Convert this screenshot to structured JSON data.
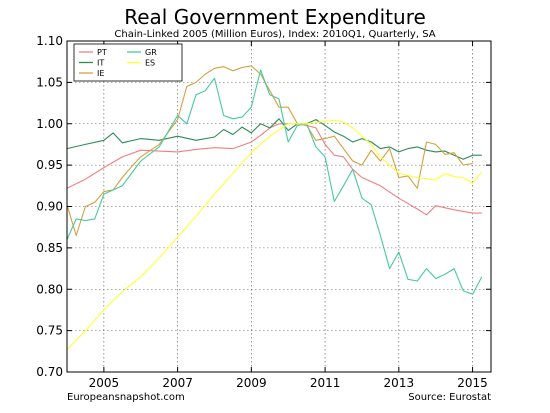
{
  "chart_data": {
    "type": "line",
    "title": "Real Government Expenditure",
    "subtitle": "Chain-Linked 2005 (Million Euros), Index: 2010Q1, Quarterly, SA",
    "xlabel": "",
    "ylabel": "",
    "xlim": [
      2004.0,
      2015.5
    ],
    "ylim": [
      0.7,
      1.1
    ],
    "x_ticks": [
      2005,
      2007,
      2009,
      2011,
      2013,
      2015
    ],
    "y_ticks": [
      0.7,
      0.75,
      0.8,
      0.85,
      0.9,
      0.95,
      1.0,
      1.05,
      1.1
    ],
    "grid": true,
    "legend": "top-left",
    "footer_left": "Europeansnapshot.com",
    "footer_right": "Source: Eurostat",
    "series": [
      {
        "name": "PT",
        "color": "#f08080",
        "points": [
          [
            2004.0,
            0.922
          ],
          [
            2004.5,
            0.933
          ],
          [
            2005.0,
            0.947
          ],
          [
            2005.5,
            0.96
          ],
          [
            2006.0,
            0.968
          ],
          [
            2006.5,
            0.967
          ],
          [
            2007.0,
            0.966
          ],
          [
            2007.5,
            0.969
          ],
          [
            2008.0,
            0.971
          ],
          [
            2008.5,
            0.97
          ],
          [
            2009.0,
            0.978
          ],
          [
            2009.25,
            0.986
          ],
          [
            2009.5,
            0.995
          ],
          [
            2009.75,
            1.0
          ],
          [
            2010.0,
            1.0
          ],
          [
            2010.25,
            1.0
          ],
          [
            2010.5,
            0.998
          ],
          [
            2010.75,
            0.995
          ],
          [
            2011.0,
            0.975
          ],
          [
            2011.25,
            0.962
          ],
          [
            2011.5,
            0.96
          ],
          [
            2011.75,
            0.945
          ],
          [
            2012.0,
            0.935
          ],
          [
            2012.5,
            0.925
          ],
          [
            2013.0,
            0.91
          ],
          [
            2013.5,
            0.897
          ],
          [
            2013.75,
            0.89
          ],
          [
            2014.0,
            0.901
          ],
          [
            2014.5,
            0.896
          ],
          [
            2015.0,
            0.892
          ],
          [
            2015.25,
            0.892
          ]
        ]
      },
      {
        "name": "IT",
        "color": "#2e8b57",
        "points": [
          [
            2004.0,
            0.97
          ],
          [
            2004.5,
            0.975
          ],
          [
            2005.0,
            0.98
          ],
          [
            2005.25,
            0.989
          ],
          [
            2005.5,
            0.977
          ],
          [
            2006.0,
            0.982
          ],
          [
            2006.5,
            0.98
          ],
          [
            2007.0,
            0.985
          ],
          [
            2007.5,
            0.98
          ],
          [
            2008.0,
            0.984
          ],
          [
            2008.25,
            0.993
          ],
          [
            2008.5,
            0.987
          ],
          [
            2008.75,
            0.996
          ],
          [
            2009.0,
            0.989
          ],
          [
            2009.25,
            1.0
          ],
          [
            2009.5,
            0.995
          ],
          [
            2009.75,
            1.006
          ],
          [
            2010.0,
            0.992
          ],
          [
            2010.25,
            1.0
          ],
          [
            2010.5,
            1.0
          ],
          [
            2010.75,
            1.005
          ],
          [
            2011.0,
            0.998
          ],
          [
            2011.25,
            0.99
          ],
          [
            2011.5,
            0.985
          ],
          [
            2011.75,
            0.978
          ],
          [
            2012.0,
            0.982
          ],
          [
            2012.25,
            0.978
          ],
          [
            2012.5,
            0.97
          ],
          [
            2012.75,
            0.972
          ],
          [
            2013.0,
            0.966
          ],
          [
            2013.25,
            0.97
          ],
          [
            2013.5,
            0.972
          ],
          [
            2013.75,
            0.968
          ],
          [
            2014.0,
            0.966
          ],
          [
            2014.25,
            0.967
          ],
          [
            2014.5,
            0.962
          ],
          [
            2014.75,
            0.957
          ],
          [
            2015.0,
            0.962
          ],
          [
            2015.25,
            0.962
          ]
        ]
      },
      {
        "name": "IE",
        "color": "#d4a040",
        "points": [
          [
            2004.0,
            0.902
          ],
          [
            2004.25,
            0.865
          ],
          [
            2004.5,
            0.9
          ],
          [
            2004.75,
            0.905
          ],
          [
            2005.0,
            0.918
          ],
          [
            2005.25,
            0.92
          ],
          [
            2005.5,
            0.935
          ],
          [
            2005.75,
            0.948
          ],
          [
            2006.0,
            0.96
          ],
          [
            2006.5,
            0.975
          ],
          [
            2007.0,
            1.005
          ],
          [
            2007.25,
            1.045
          ],
          [
            2007.5,
            1.05
          ],
          [
            2007.75,
            1.06
          ],
          [
            2008.0,
            1.067
          ],
          [
            2008.25,
            1.069
          ],
          [
            2008.5,
            1.064
          ],
          [
            2008.75,
            1.068
          ],
          [
            2009.0,
            1.07
          ],
          [
            2009.25,
            1.06
          ],
          [
            2009.5,
            1.04
          ],
          [
            2009.75,
            1.02
          ],
          [
            2010.0,
            1.02
          ],
          [
            2010.25,
            1.0
          ],
          [
            2010.5,
            0.998
          ],
          [
            2010.75,
            0.98
          ],
          [
            2011.0,
            0.982
          ],
          [
            2011.25,
            0.985
          ],
          [
            2011.5,
            0.97
          ],
          [
            2011.75,
            0.955
          ],
          [
            2012.0,
            0.95
          ],
          [
            2012.25,
            0.968
          ],
          [
            2012.5,
            0.955
          ],
          [
            2012.75,
            0.97
          ],
          [
            2013.0,
            0.935
          ],
          [
            2013.25,
            0.937
          ],
          [
            2013.5,
            0.922
          ],
          [
            2013.75,
            0.978
          ],
          [
            2014.0,
            0.975
          ],
          [
            2014.25,
            0.963
          ],
          [
            2014.5,
            0.965
          ],
          [
            2014.75,
            0.95
          ],
          [
            2015.0,
            0.952
          ]
        ]
      },
      {
        "name": "GR",
        "color": "#48c9a0",
        "points": [
          [
            2004.0,
            0.86
          ],
          [
            2004.25,
            0.885
          ],
          [
            2004.5,
            0.883
          ],
          [
            2004.75,
            0.885
          ],
          [
            2005.0,
            0.915
          ],
          [
            2005.5,
            0.925
          ],
          [
            2006.0,
            0.955
          ],
          [
            2006.5,
            0.972
          ],
          [
            2007.0,
            1.01
          ],
          [
            2007.25,
            1.0
          ],
          [
            2007.5,
            1.035
          ],
          [
            2007.75,
            1.04
          ],
          [
            2008.0,
            1.055
          ],
          [
            2008.25,
            1.01
          ],
          [
            2008.5,
            1.006
          ],
          [
            2008.75,
            1.008
          ],
          [
            2009.0,
            1.02
          ],
          [
            2009.25,
            1.065
          ],
          [
            2009.5,
            1.035
          ],
          [
            2009.75,
            1.03
          ],
          [
            2010.0,
            0.978
          ],
          [
            2010.25,
            0.998
          ],
          [
            2010.5,
            1.0
          ],
          [
            2010.75,
            0.972
          ],
          [
            2011.0,
            0.96
          ],
          [
            2011.25,
            0.906
          ],
          [
            2011.5,
            0.925
          ],
          [
            2011.75,
            0.945
          ],
          [
            2012.0,
            0.91
          ],
          [
            2012.25,
            0.902
          ],
          [
            2012.5,
            0.865
          ],
          [
            2012.75,
            0.825
          ],
          [
            2013.0,
            0.845
          ],
          [
            2013.25,
            0.812
          ],
          [
            2013.5,
            0.81
          ],
          [
            2013.75,
            0.825
          ],
          [
            2014.0,
            0.813
          ],
          [
            2014.25,
            0.818
          ],
          [
            2014.5,
            0.825
          ],
          [
            2014.75,
            0.798
          ],
          [
            2015.0,
            0.794
          ],
          [
            2015.25,
            0.815
          ]
        ]
      },
      {
        "name": "ES",
        "color": "#ffff33",
        "points": [
          [
            2004.0,
            0.727
          ],
          [
            2004.5,
            0.75
          ],
          [
            2005.0,
            0.775
          ],
          [
            2005.5,
            0.797
          ],
          [
            2006.0,
            0.815
          ],
          [
            2006.5,
            0.838
          ],
          [
            2007.0,
            0.863
          ],
          [
            2007.5,
            0.888
          ],
          [
            2008.0,
            0.915
          ],
          [
            2008.5,
            0.94
          ],
          [
            2009.0,
            0.965
          ],
          [
            2009.5,
            0.985
          ],
          [
            2010.0,
            1.0
          ],
          [
            2010.5,
            1.0
          ],
          [
            2011.0,
            1.003
          ],
          [
            2011.25,
            1.004
          ],
          [
            2011.5,
            1.002
          ],
          [
            2011.75,
            0.995
          ],
          [
            2012.0,
            0.985
          ],
          [
            2012.25,
            0.975
          ],
          [
            2012.5,
            0.96
          ],
          [
            2012.75,
            0.95
          ],
          [
            2013.0,
            0.94
          ],
          [
            2013.5,
            0.935
          ],
          [
            2014.0,
            0.932
          ],
          [
            2014.25,
            0.94
          ],
          [
            2014.5,
            0.936
          ],
          [
            2014.75,
            0.935
          ],
          [
            2015.0,
            0.928
          ],
          [
            2015.25,
            0.942
          ]
        ]
      }
    ]
  }
}
